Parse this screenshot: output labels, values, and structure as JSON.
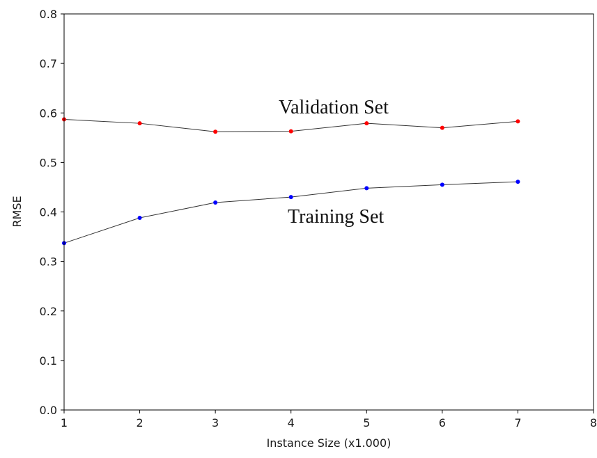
{
  "chart_data": {
    "type": "line",
    "title": "",
    "xlabel": "Instance Size (x1.000)",
    "ylabel": "RMSE",
    "xlim": [
      1,
      8
    ],
    "ylim": [
      0.0,
      0.8
    ],
    "x_ticks": [
      "1",
      "2",
      "3",
      "4",
      "5",
      "6",
      "7",
      "8"
    ],
    "y_ticks": [
      "0.0",
      "0.1",
      "0.2",
      "0.3",
      "0.4",
      "0.5",
      "0.6",
      "0.7",
      "0.8"
    ],
    "x": [
      1,
      2,
      3,
      4,
      5,
      6,
      7
    ],
    "grid": false,
    "legend": "none",
    "line_color": "#333333",
    "series": [
      {
        "label": "Validation Set",
        "color": "#ff0000",
        "values": [
          0.587,
          0.579,
          0.562,
          0.563,
          0.579,
          0.57,
          0.583
        ]
      },
      {
        "label": "Training Set",
        "color": "#0000ff",
        "values": [
          0.337,
          0.388,
          0.419,
          0.43,
          0.448,
          0.455,
          0.461
        ]
      }
    ]
  }
}
